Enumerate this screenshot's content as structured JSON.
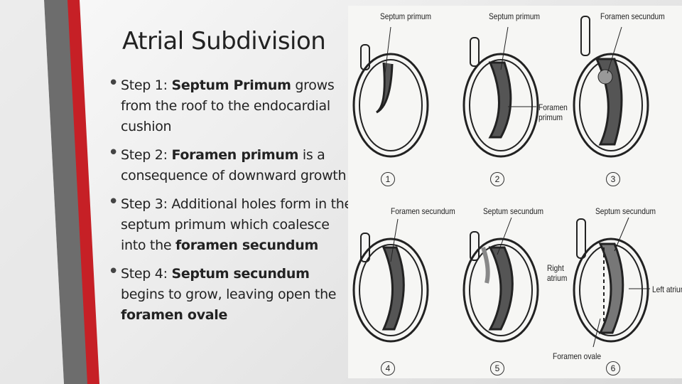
{
  "title": "Atrial Subdivision",
  "bullets": [
    [
      {
        "text": "Step 1: "
      },
      {
        "text": "Septum Primum",
        "bold": true
      },
      {
        "text": " grows from the roof to the endocardial cushion"
      }
    ],
    [
      {
        "text": "Step 2: "
      },
      {
        "text": "Foramen primum",
        "bold": true
      },
      {
        "text": " is a consequence of downward growth"
      }
    ],
    [
      {
        "text": "Step 3: Additional holes form in the septum primum which coalesce into the "
      },
      {
        "text": "foramen secundum",
        "bold": true
      }
    ],
    [
      {
        "text": "Step 4: "
      },
      {
        "text": "Septum secundum",
        "bold": true
      },
      {
        "text": " begins to grow, leaving open the "
      },
      {
        "text": "foramen ovale",
        "bold": true
      }
    ]
  ],
  "figure": {
    "labels": [
      "Septum primum",
      "Septum primum",
      "Foramen secundum",
      "Foramen primum",
      "Foramen secundum",
      "Septum secundum",
      "Septum secundum",
      "Right atrium",
      "Left atrium",
      "Foramen ovale"
    ],
    "numbers": [
      "1",
      "2",
      "3",
      "4",
      "5",
      "6"
    ]
  }
}
